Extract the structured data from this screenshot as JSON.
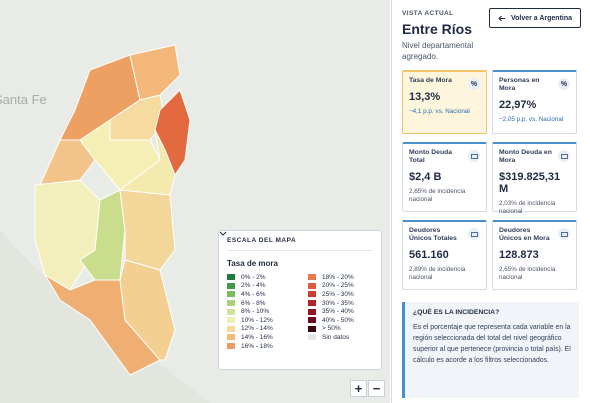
{
  "map": {
    "labels": [
      "Santa Fe"
    ],
    "legend": {
      "title": "ESCALA DEL MAPA",
      "subtitle": "Tasa de mora",
      "items": [
        {
          "label": "0% - 2%",
          "color": "#1e7a3c"
        },
        {
          "label": "2% - 4%",
          "color": "#3f9a4a"
        },
        {
          "label": "4% - 6%",
          "color": "#7bbd5e"
        },
        {
          "label": "6% - 8%",
          "color": "#a9d27a"
        },
        {
          "label": "8% - 10%",
          "color": "#d3e49a"
        },
        {
          "label": "10% - 12%",
          "color": "#f2efb4"
        },
        {
          "label": "12% - 14%",
          "color": "#f6d898"
        },
        {
          "label": "14% - 16%",
          "color": "#f3b978"
        },
        {
          "label": "16% - 18%",
          "color": "#ec9a5e"
        },
        {
          "label": "18% - 20%",
          "color": "#e67a4c"
        },
        {
          "label": "20% - 25%",
          "color": "#dd5a3c"
        },
        {
          "label": "25% - 30%",
          "color": "#cc3b32"
        },
        {
          "label": "30% - 35%",
          "color": "#b0232b"
        },
        {
          "label": "35% - 40%",
          "color": "#8e1324"
        },
        {
          "label": "40% - 50%",
          "color": "#6a0a1c"
        },
        {
          "label": "> 50%",
          "color": "#3d0510"
        },
        {
          "label": "Sin datos",
          "color": "#e3e6ea"
        }
      ]
    },
    "zoom_in": "+",
    "zoom_out": "−"
  },
  "panel": {
    "eyebrow": "VISTA ACTUAL",
    "title": "Entre Ríos",
    "subtitle": "Nivel departamental agregado.",
    "back_button": "Volver a Argentina",
    "cards": [
      {
        "title": "Tasa de Mora",
        "icon": "%",
        "value": "13,3%",
        "note": "−4,1 p.p. vs. Nacional"
      },
      {
        "title": "Personas en Mora",
        "icon": "%",
        "value": "22,97%",
        "note": "−2,05 p.p. vs. Nacional"
      },
      {
        "title": "Monto Deuda Total",
        "value": "$2,4 B",
        "note": "2,65% de incidencia nacional"
      },
      {
        "title": "Monto Deuda en Mora",
        "value": "$319.825,31 M",
        "note": "2,03% de incidencia nacional"
      },
      {
        "title": "Deudores Únicos Totales",
        "value": "561.160",
        "note": "2,89% de incidencia nacional"
      },
      {
        "title": "Deudores Únicos en Mora",
        "value": "128.873",
        "note": "2,65% de incidencia nacional"
      }
    ],
    "info": {
      "title": "¿QUÉ ES LA INCIDENCIA?",
      "text": "Es el porcentaje que representa cada variable en la región seleccionada del total del nivel geográfico superior al que pertenece (provincia o total país). El cálculo es acorde a los filtros seleccionados."
    }
  }
}
